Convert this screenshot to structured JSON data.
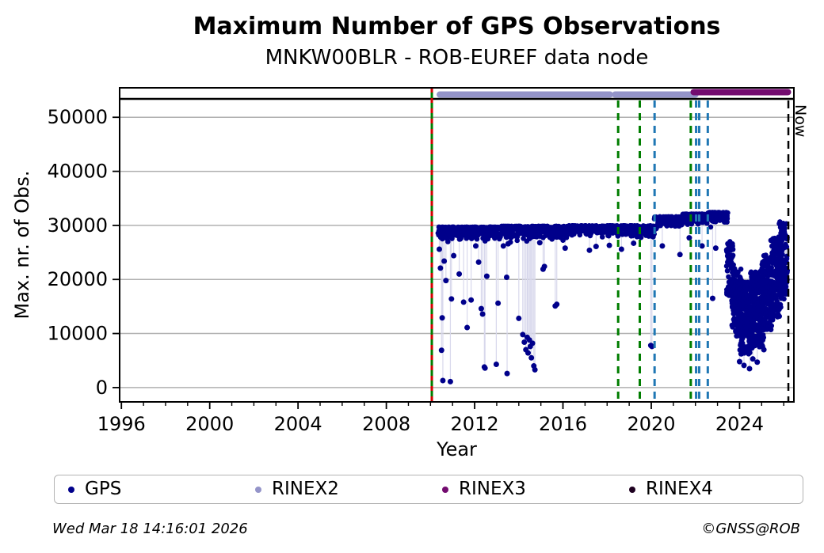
{
  "title": "Maximum Number of GPS Observations",
  "subtitle": "MNKW00BLR - ROB-EUREF data node",
  "footer": {
    "timestamp": "Wed Mar 18 14:16:01 2026",
    "credit": "©GNSS@ROB"
  },
  "legend": {
    "items": [
      {
        "label": "GPS",
        "color": "#00008b"
      },
      {
        "label": "RINEX2",
        "color": "#9494c9"
      },
      {
        "label": "RINEX3",
        "color": "#730b6f"
      },
      {
        "label": "RINEX4",
        "color": "#1e0020"
      }
    ]
  },
  "chart_data": {
    "type": "scatter",
    "title": "Maximum Number of GPS Observations",
    "subtitle": "MNKW00BLR - ROB-EUREF data node",
    "xlabel": "Year",
    "ylabel": "Max. nr. of Obs.",
    "xlim": [
      1995.92,
      2026.46
    ],
    "ylim": [
      -2650,
      55450
    ],
    "grid": "horizontal",
    "xticks": {
      "values": [
        1996,
        2000,
        2004,
        2008,
        2012,
        2016,
        2020,
        2024
      ],
      "labels": [
        "1996",
        "2000",
        "2004",
        "2008",
        "2012",
        "2016",
        "2020",
        "2024"
      ],
      "minor_step": 1
    },
    "yticks": {
      "values": [
        0,
        10000,
        20000,
        30000,
        40000,
        50000
      ],
      "labels": [
        "0",
        "10000",
        "20000",
        "30000",
        "40000",
        "50000"
      ]
    },
    "max_obs_line": {
      "value": 53400,
      "color": "#000000"
    },
    "now_marker": {
      "year": 2026.21,
      "label": "Now",
      "color": "#000000"
    },
    "event_lines": [
      {
        "year": 2010.06,
        "color": "#007d00",
        "style": "solid",
        "name": "data-start-line-green"
      },
      {
        "year": 2010.06,
        "color": "#d40000",
        "style": "dashed",
        "name": "data-start-line-red"
      },
      {
        "year": 2018.5,
        "color": "#007d00",
        "style": "dashed",
        "name": "event-2018-5"
      },
      {
        "year": 2019.48,
        "color": "#007d00",
        "style": "dashed",
        "name": "event-2019-5"
      },
      {
        "year": 2020.15,
        "color": "#1f77b4",
        "style": "dashed",
        "name": "event-2020-1"
      },
      {
        "year": 2021.79,
        "color": "#007d00",
        "style": "dashed",
        "name": "event-2021-8"
      },
      {
        "year": 2022.03,
        "color": "#1f77b4",
        "style": "dashed",
        "name": "event-2022-0"
      },
      {
        "year": 2022.17,
        "color": "#1f77b4",
        "style": "dashed",
        "name": "event-2022-2"
      },
      {
        "year": 2022.56,
        "color": "#1f77b4",
        "style": "dashed",
        "name": "event-2022-6"
      }
    ],
    "rinex_bars": [
      {
        "name": "RINEX2",
        "color": "#9494c9",
        "value": 54200,
        "segments": [
          [
            2010.42,
            2018.13
          ],
          [
            2018.36,
            2022.0
          ]
        ]
      },
      {
        "name": "RINEX3",
        "color": "#730b6f",
        "value": 54650,
        "segments": [
          [
            2021.92,
            2026.19
          ]
        ]
      }
    ],
    "gps_series": {
      "name": "GPS",
      "color": "#00008b",
      "stem_color": "#d8d8ec",
      "marker_radius": 3.3,
      "seed": 1234,
      "band_segments": [
        {
          "x0": 2010.35,
          "x1": 2013.2,
          "lo": 27400,
          "hi": 29700,
          "n": 220
        },
        {
          "x0": 2013.2,
          "x1": 2016.2,
          "lo": 27700,
          "hi": 29850,
          "n": 220
        },
        {
          "x0": 2016.2,
          "x1": 2020.15,
          "lo": 28000,
          "hi": 29950,
          "n": 280
        },
        {
          "x0": 2020.15,
          "x1": 2021.4,
          "lo": 29800,
          "hi": 31600,
          "n": 110
        },
        {
          "x0": 2021.4,
          "x1": 2022.56,
          "lo": 30200,
          "hi": 32100,
          "n": 115
        },
        {
          "x0": 2022.56,
          "x1": 2023.45,
          "lo": 30600,
          "hi": 32400,
          "n": 105
        }
      ],
      "cloud_segments": [
        {
          "x0": 2023.4,
          "x1": 2023.75,
          "lo": 17000,
          "hi": 27000,
          "n": 70
        },
        {
          "x0": 2023.65,
          "x1": 2024.1,
          "lo": 9500,
          "hi": 22000,
          "n": 150
        },
        {
          "x0": 2024.0,
          "x1": 2024.6,
          "lo": 6000,
          "hi": 19500,
          "n": 200
        },
        {
          "x0": 2024.5,
          "x1": 2025.1,
          "lo": 7500,
          "hi": 21500,
          "n": 200
        },
        {
          "x0": 2025.0,
          "x1": 2025.5,
          "lo": 10000,
          "hi": 24500,
          "n": 160
        },
        {
          "x0": 2025.4,
          "x1": 2025.9,
          "lo": 13000,
          "hi": 28000,
          "n": 150
        },
        {
          "x0": 2025.8,
          "x1": 2026.16,
          "lo": 16000,
          "hi": 30700,
          "n": 120
        }
      ],
      "outliers": [
        [
          2010.4,
          25600,
          28600
        ],
        [
          2010.45,
          22100,
          28600
        ],
        [
          2010.5,
          6900,
          28600
        ],
        [
          2010.53,
          12900,
          28600
        ],
        [
          2010.56,
          1300,
          28600
        ],
        [
          2010.62,
          23400,
          28600
        ],
        [
          2010.7,
          19800,
          28600
        ],
        [
          2010.9,
          1100,
          28600
        ],
        [
          2010.95,
          16400,
          28600
        ],
        [
          2011.05,
          24400,
          28600
        ],
        [
          2011.3,
          21000,
          28600
        ],
        [
          2011.5,
          15800,
          28600
        ],
        [
          2011.66,
          11100,
          28600
        ],
        [
          2011.84,
          16200,
          28600
        ],
        [
          2012.05,
          26200,
          28600
        ],
        [
          2012.18,
          23200,
          28600
        ],
        [
          2012.3,
          14600,
          28600
        ],
        [
          2012.36,
          13600,
          28600
        ],
        [
          2012.44,
          3800,
          28600
        ],
        [
          2012.47,
          3600,
          28600
        ],
        [
          2012.55,
          20600,
          28600
        ],
        [
          2012.98,
          4300,
          28600
        ],
        [
          2013.06,
          15600,
          28600
        ],
        [
          2013.3,
          26200,
          28600
        ],
        [
          2013.45,
          20400,
          28600
        ],
        [
          2013.47,
          2600,
          28600
        ],
        [
          2013.52,
          26600,
          28600
        ],
        [
          2014.0,
          12800,
          28600
        ],
        [
          2014.18,
          9800,
          28600
        ],
        [
          2014.25,
          8400,
          28600
        ],
        [
          2014.32,
          7000,
          28600
        ],
        [
          2014.38,
          9300,
          28600
        ],
        [
          2014.42,
          6400,
          28600
        ],
        [
          2014.48,
          8800,
          28600
        ],
        [
          2014.52,
          7600,
          28600
        ],
        [
          2014.57,
          5500,
          28600
        ],
        [
          2014.62,
          8200,
          28600
        ],
        [
          2014.68,
          4000,
          28600
        ],
        [
          2014.73,
          3300,
          28600
        ],
        [
          2014.95,
          26800,
          28600
        ],
        [
          2015.1,
          21900,
          28600
        ],
        [
          2015.16,
          22400,
          28600
        ],
        [
          2015.65,
          15100,
          28600
        ],
        [
          2015.72,
          15400,
          28600
        ],
        [
          2016.1,
          25800,
          28600
        ],
        [
          2017.2,
          25400,
          28600
        ],
        [
          2017.5,
          26100,
          28600
        ],
        [
          2018.1,
          26300,
          28600
        ],
        [
          2018.65,
          25600,
          28600
        ],
        [
          2019.2,
          26700,
          28600
        ],
        [
          2019.98,
          7800,
          28600
        ],
        [
          2020.03,
          7600,
          28600
        ],
        [
          2020.5,
          26200,
          30600
        ],
        [
          2021.3,
          24600,
          30700
        ],
        [
          2021.72,
          27700,
          30900
        ],
        [
          2022.3,
          26200,
          31300
        ],
        [
          2022.78,
          16500,
          31500
        ],
        [
          2022.92,
          25800,
          31500
        ],
        [
          2024.0,
          4800,
          12000
        ],
        [
          2024.2,
          4100,
          11000
        ],
        [
          2024.45,
          3500,
          10500
        ],
        [
          2024.6,
          5300,
          11000
        ],
        [
          2024.8,
          4700,
          12000
        ],
        [
          2025.1,
          7000,
          13500
        ]
      ]
    }
  }
}
